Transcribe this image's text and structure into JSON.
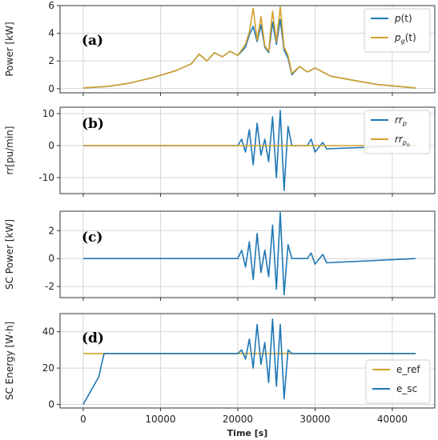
{
  "colors": {
    "blue": "#1f77b4",
    "orange": "#d4a02c"
  },
  "chart_data": [
    {
      "type": "line",
      "panel_label": "(a)",
      "ylabel": "Power [kW]",
      "xlim": [
        -3000,
        45500
      ],
      "ylim": [
        -0.3,
        6.0
      ],
      "yticks": [
        0,
        2,
        4,
        6
      ],
      "grid": true,
      "legend": "top-right",
      "series": [
        {
          "name_main": "p",
          "name_sub": "",
          "name_tail": "(t)",
          "color": "blue",
          "x": [
            0,
            3000,
            6000,
            9000,
            12000,
            14000,
            15000,
            16000,
            17000,
            18000,
            19000,
            20000,
            21000,
            21500,
            22000,
            22500,
            23000,
            23500,
            24000,
            24500,
            25000,
            25500,
            26000,
            26500,
            27000,
            28000,
            29000,
            30000,
            31000,
            32000,
            34000,
            36000,
            38000,
            43000
          ],
          "y": [
            0.05,
            0.15,
            0.4,
            0.8,
            1.3,
            1.8,
            2.5,
            2.0,
            2.6,
            2.3,
            2.7,
            2.4,
            3.0,
            3.9,
            4.5,
            3.4,
            4.6,
            3.0,
            2.6,
            4.8,
            3.2,
            5.0,
            2.8,
            2.2,
            1.0,
            1.6,
            1.2,
            1.5,
            1.2,
            0.9,
            0.7,
            0.5,
            0.3,
            0.05
          ]
        },
        {
          "name_main": "p",
          "name_sub": "g",
          "name_tail": "(t)",
          "color": "orange",
          "x": [
            0,
            3000,
            6000,
            9000,
            12000,
            14000,
            15000,
            16000,
            17000,
            18000,
            19000,
            20000,
            21000,
            21500,
            22000,
            22500,
            23000,
            23500,
            24000,
            24500,
            25000,
            25500,
            26000,
            26500,
            27000,
            28000,
            29000,
            30000,
            31000,
            32000,
            34000,
            36000,
            38000,
            43000
          ],
          "y": [
            0.05,
            0.15,
            0.4,
            0.8,
            1.3,
            1.8,
            2.5,
            2.0,
            2.6,
            2.3,
            2.7,
            2.4,
            3.2,
            4.1,
            5.8,
            3.5,
            5.2,
            3.1,
            2.7,
            5.6,
            3.4,
            5.9,
            3.0,
            2.4,
            1.1,
            1.6,
            1.2,
            1.5,
            1.2,
            0.9,
            0.7,
            0.5,
            0.3,
            0.05
          ]
        }
      ]
    },
    {
      "type": "line",
      "panel_label": "(b)",
      "ylabel": "rr[pu/min]",
      "xlim": [
        -3000,
        45500
      ],
      "ylim": [
        -15,
        12
      ],
      "yticks": [
        -10,
        0,
        10
      ],
      "grid": true,
      "legend": "top-right",
      "series": [
        {
          "name_main": "rr",
          "name_sub": "p",
          "name_tail": "",
          "color": "blue",
          "x": [
            0,
            20000,
            20500,
            21000,
            21500,
            22000,
            22500,
            23000,
            23500,
            24000,
            24500,
            25000,
            25500,
            26000,
            26500,
            27000,
            29000,
            29500,
            30000,
            31000,
            31500,
            43000
          ],
          "y": [
            0,
            0,
            2,
            -2,
            5,
            -6,
            7,
            -3,
            2,
            -5,
            9,
            -10,
            11,
            -14,
            6,
            0,
            0,
            2,
            -2,
            1,
            -1,
            0
          ]
        },
        {
          "name_main": "rr",
          "name_sub": "p",
          "name_sub2": "o",
          "name_tail": "",
          "color": "orange",
          "x": [
            0,
            43000
          ],
          "y": [
            0,
            0
          ]
        }
      ]
    },
    {
      "type": "line",
      "panel_label": "(c)",
      "ylabel": "SC Power [kW]",
      "xlim": [
        -3000,
        45500
      ],
      "ylim": [
        -2.8,
        3.4
      ],
      "yticks": [
        -2,
        0,
        2
      ],
      "grid": true,
      "series": [
        {
          "name": "",
          "color": "blue",
          "x": [
            0,
            20000,
            20500,
            21000,
            21500,
            22000,
            22500,
            23000,
            23500,
            24000,
            24500,
            25000,
            25500,
            26000,
            26500,
            27000,
            29000,
            29500,
            30000,
            31000,
            31500,
            43000
          ],
          "y": [
            0,
            0,
            0.6,
            -0.6,
            1.2,
            -1.5,
            1.8,
            -1.0,
            0.6,
            -1.3,
            2.4,
            -2.2,
            3.3,
            -2.6,
            1.0,
            0,
            0,
            0.4,
            -0.4,
            0.3,
            -0.3,
            0
          ]
        }
      ]
    },
    {
      "type": "line",
      "panel_label": "(d)",
      "ylabel": "SC Energy [W·h]",
      "xlabel": "Time [s]",
      "xlim": [
        -3000,
        45500
      ],
      "ylim": [
        -2,
        50
      ],
      "yticks": [
        0,
        20,
        40
      ],
      "xticks": [
        0,
        10000,
        20000,
        30000,
        40000
      ],
      "grid": true,
      "legend": "bottom-right",
      "series": [
        {
          "name": "e_ref",
          "color": "orange",
          "x": [
            0,
            2600,
            43000
          ],
          "y": [
            28,
            28,
            28
          ]
        },
        {
          "name": "e_sc",
          "color": "blue",
          "x": [
            0,
            2000,
            2700,
            20000,
            20500,
            21000,
            21500,
            22000,
            22500,
            23000,
            23500,
            24000,
            24500,
            25000,
            25500,
            26000,
            26500,
            27000,
            43000
          ],
          "y": [
            0,
            15,
            28,
            28,
            30,
            25,
            36,
            20,
            44,
            22,
            34,
            12,
            47,
            10,
            44,
            3,
            30,
            28,
            28
          ]
        }
      ]
    }
  ]
}
